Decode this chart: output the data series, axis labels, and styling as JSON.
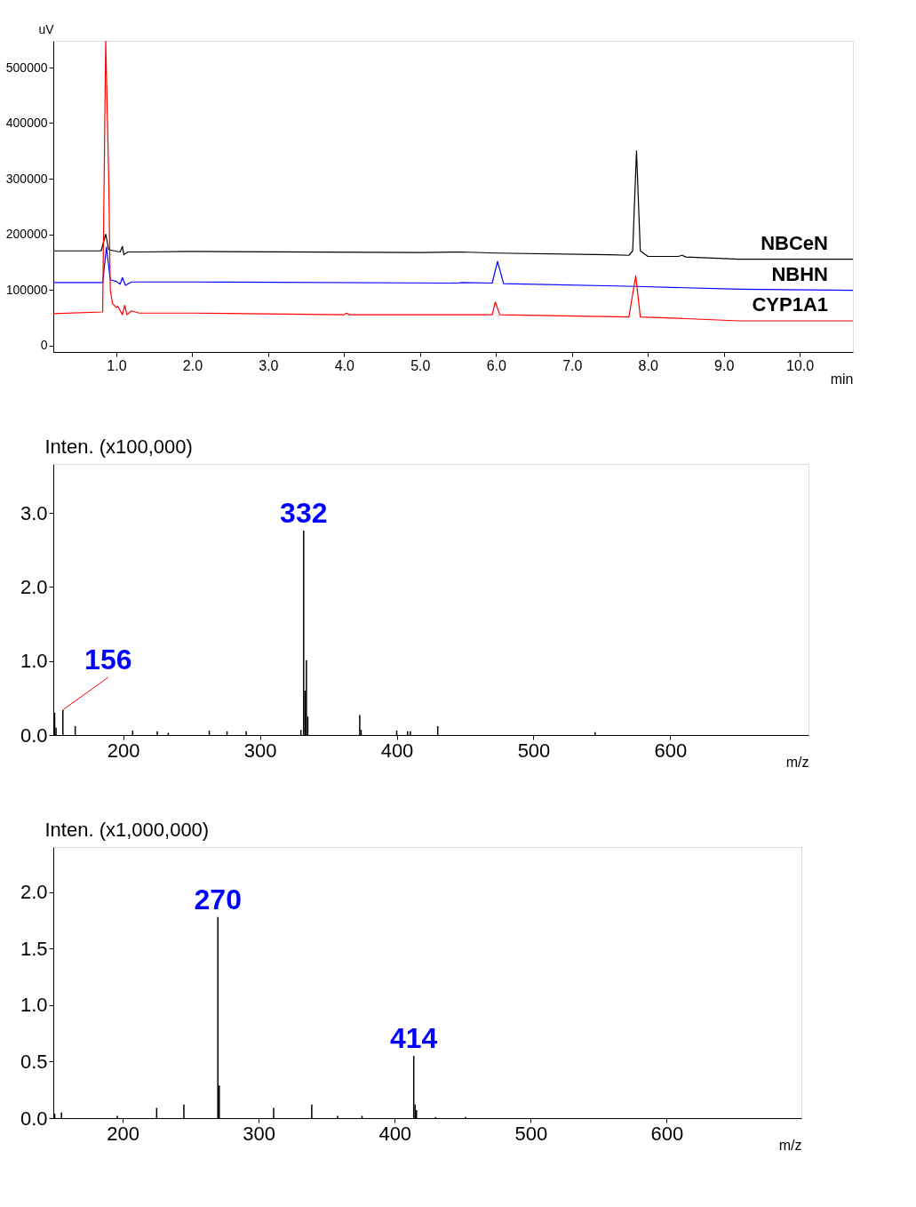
{
  "chart_data": [
    {
      "type": "line",
      "ylabel": "uV",
      "xlabel": "min",
      "legend": false,
      "grid": false,
      "xlim": [
        0.17,
        10.7
      ],
      "ylim": [
        -12000,
        548000
      ],
      "xticks": [
        {
          "value": 1,
          "label": "1.0"
        },
        {
          "value": 2,
          "label": "2.0"
        },
        {
          "value": 3,
          "label": "3.0"
        },
        {
          "value": 4,
          "label": "4.0"
        },
        {
          "value": 5,
          "label": "5.0"
        },
        {
          "value": 6,
          "label": "6.0"
        },
        {
          "value": 7,
          "label": "7.0"
        },
        {
          "value": 8,
          "label": "8.0"
        },
        {
          "value": 9,
          "label": "9.0"
        },
        {
          "value": 10,
          "label": "10.0"
        }
      ],
      "yticks": [
        {
          "value": 0,
          "label": "0"
        },
        {
          "value": 100000,
          "label": "100000"
        },
        {
          "value": 200000,
          "label": "200000"
        },
        {
          "value": 300000,
          "label": "300000"
        },
        {
          "value": 400000,
          "label": "400000"
        },
        {
          "value": 500000,
          "label": "500000"
        }
      ],
      "series": [
        {
          "name": "NBCeN",
          "color": "#000000",
          "x": [
            0.17,
            0.8,
            0.86,
            0.9,
            1.05,
            1.08,
            1.1,
            1.15,
            1.3,
            2.0,
            5.0,
            5.55,
            6.0,
            7.5,
            7.75,
            7.8,
            7.85,
            7.9,
            8.0,
            8.4,
            8.45,
            8.5,
            9.2,
            10.7
          ],
          "values": [
            170000,
            170000,
            200000,
            172000,
            168000,
            178000,
            163000,
            168000,
            168000,
            169000,
            167000,
            168000,
            166000,
            163000,
            162000,
            170000,
            350000,
            170000,
            160000,
            160000,
            162000,
            159000,
            155000,
            155000
          ]
        },
        {
          "name": "NBHN",
          "color": "#0000ff",
          "x": [
            0.17,
            0.82,
            0.87,
            0.92,
            1.0,
            1.05,
            1.08,
            1.12,
            1.2,
            2.0,
            5.5,
            5.55,
            5.95,
            6.02,
            6.1,
            7.85,
            9.2,
            10.7
          ],
          "values": [
            113000,
            113000,
            177000,
            118000,
            115000,
            110000,
            122000,
            108000,
            114000,
            114000,
            112000,
            113000,
            112000,
            151000,
            111000,
            106000,
            101000,
            99000
          ]
        },
        {
          "name": "CYP1A1",
          "color": "#ff0000",
          "x": [
            0.17,
            0.82,
            0.86,
            0.9,
            0.92,
            0.95,
            1.0,
            1.02,
            1.08,
            1.11,
            1.14,
            1.2,
            1.3,
            2.0,
            4.0,
            4.03,
            4.07,
            5.5,
            5.95,
            5.99,
            6.05,
            7.75,
            7.84,
            7.9,
            8.5,
            9.2,
            10.7
          ],
          "values": [
            57000,
            60000,
            548000,
            300000,
            100000,
            75000,
            68000,
            70000,
            55000,
            72000,
            55000,
            62000,
            58000,
            58000,
            55000,
            58000,
            55000,
            55000,
            55000,
            78000,
            55000,
            51000,
            125000,
            51000,
            48000,
            44000,
            44000
          ]
        }
      ]
    },
    {
      "type": "bar",
      "ylabel": "Inten. (x100,000)",
      "xlabel": "m/z",
      "legend": false,
      "grid": false,
      "xlim": [
        149,
        701
      ],
      "ylim": [
        0,
        3.66
      ],
      "xticks": [
        200,
        300,
        400,
        500,
        600
      ],
      "yticks": [
        {
          "value": 0,
          "label": "0.0"
        },
        {
          "value": 1,
          "label": "1.0"
        },
        {
          "value": 2,
          "label": "2.0"
        },
        {
          "value": 3,
          "label": "3.0"
        }
      ],
      "x": [
        150,
        151,
        156,
        165,
        207,
        225,
        233,
        263,
        276,
        290,
        330,
        332,
        333,
        334,
        335,
        373,
        374,
        400,
        408,
        410,
        430,
        545
      ],
      "values": [
        0.3,
        0.1,
        0.34,
        0.12,
        0.06,
        0.05,
        0.03,
        0.06,
        0.05,
        0.05,
        0.07,
        2.76,
        0.6,
        1.01,
        0.25,
        0.27,
        0.07,
        0.06,
        0.05,
        0.05,
        0.12,
        0.04
      ],
      "color": "#000000",
      "annotations": [
        {
          "text": "332",
          "x": 332,
          "y": 2.76
        },
        {
          "text": "156",
          "x": 156,
          "y": 0.34
        }
      ]
    },
    {
      "type": "bar",
      "ylabel": "Inten. (x1,000,000)",
      "xlabel": "m/z",
      "legend": false,
      "grid": false,
      "xlim": [
        149,
        699
      ],
      "ylim": [
        0,
        2.4
      ],
      "xticks": [
        200,
        300,
        400,
        500,
        600
      ],
      "yticks": [
        {
          "value": 0,
          "label": "0.0"
        },
        {
          "value": 0.5,
          "label": "0.5"
        },
        {
          "value": 1,
          "label": "1.0"
        },
        {
          "value": 1.5,
          "label": "1.5"
        },
        {
          "value": 2,
          "label": "2.0"
        }
      ],
      "x": [
        150,
        155,
        196,
        225,
        245,
        270,
        271,
        311,
        339,
        358,
        376,
        414,
        415,
        416,
        430,
        452
      ],
      "values": [
        0.04,
        0.05,
        0.02,
        0.09,
        0.12,
        1.78,
        0.29,
        0.09,
        0.12,
        0.02,
        0.02,
        0.55,
        0.12,
        0.07,
        0.01,
        0.01
      ],
      "color": "#000000",
      "annotations": [
        {
          "text": "270",
          "x": 270,
          "y": 1.78
        },
        {
          "text": "414",
          "x": 414,
          "y": 0.55
        }
      ]
    }
  ]
}
